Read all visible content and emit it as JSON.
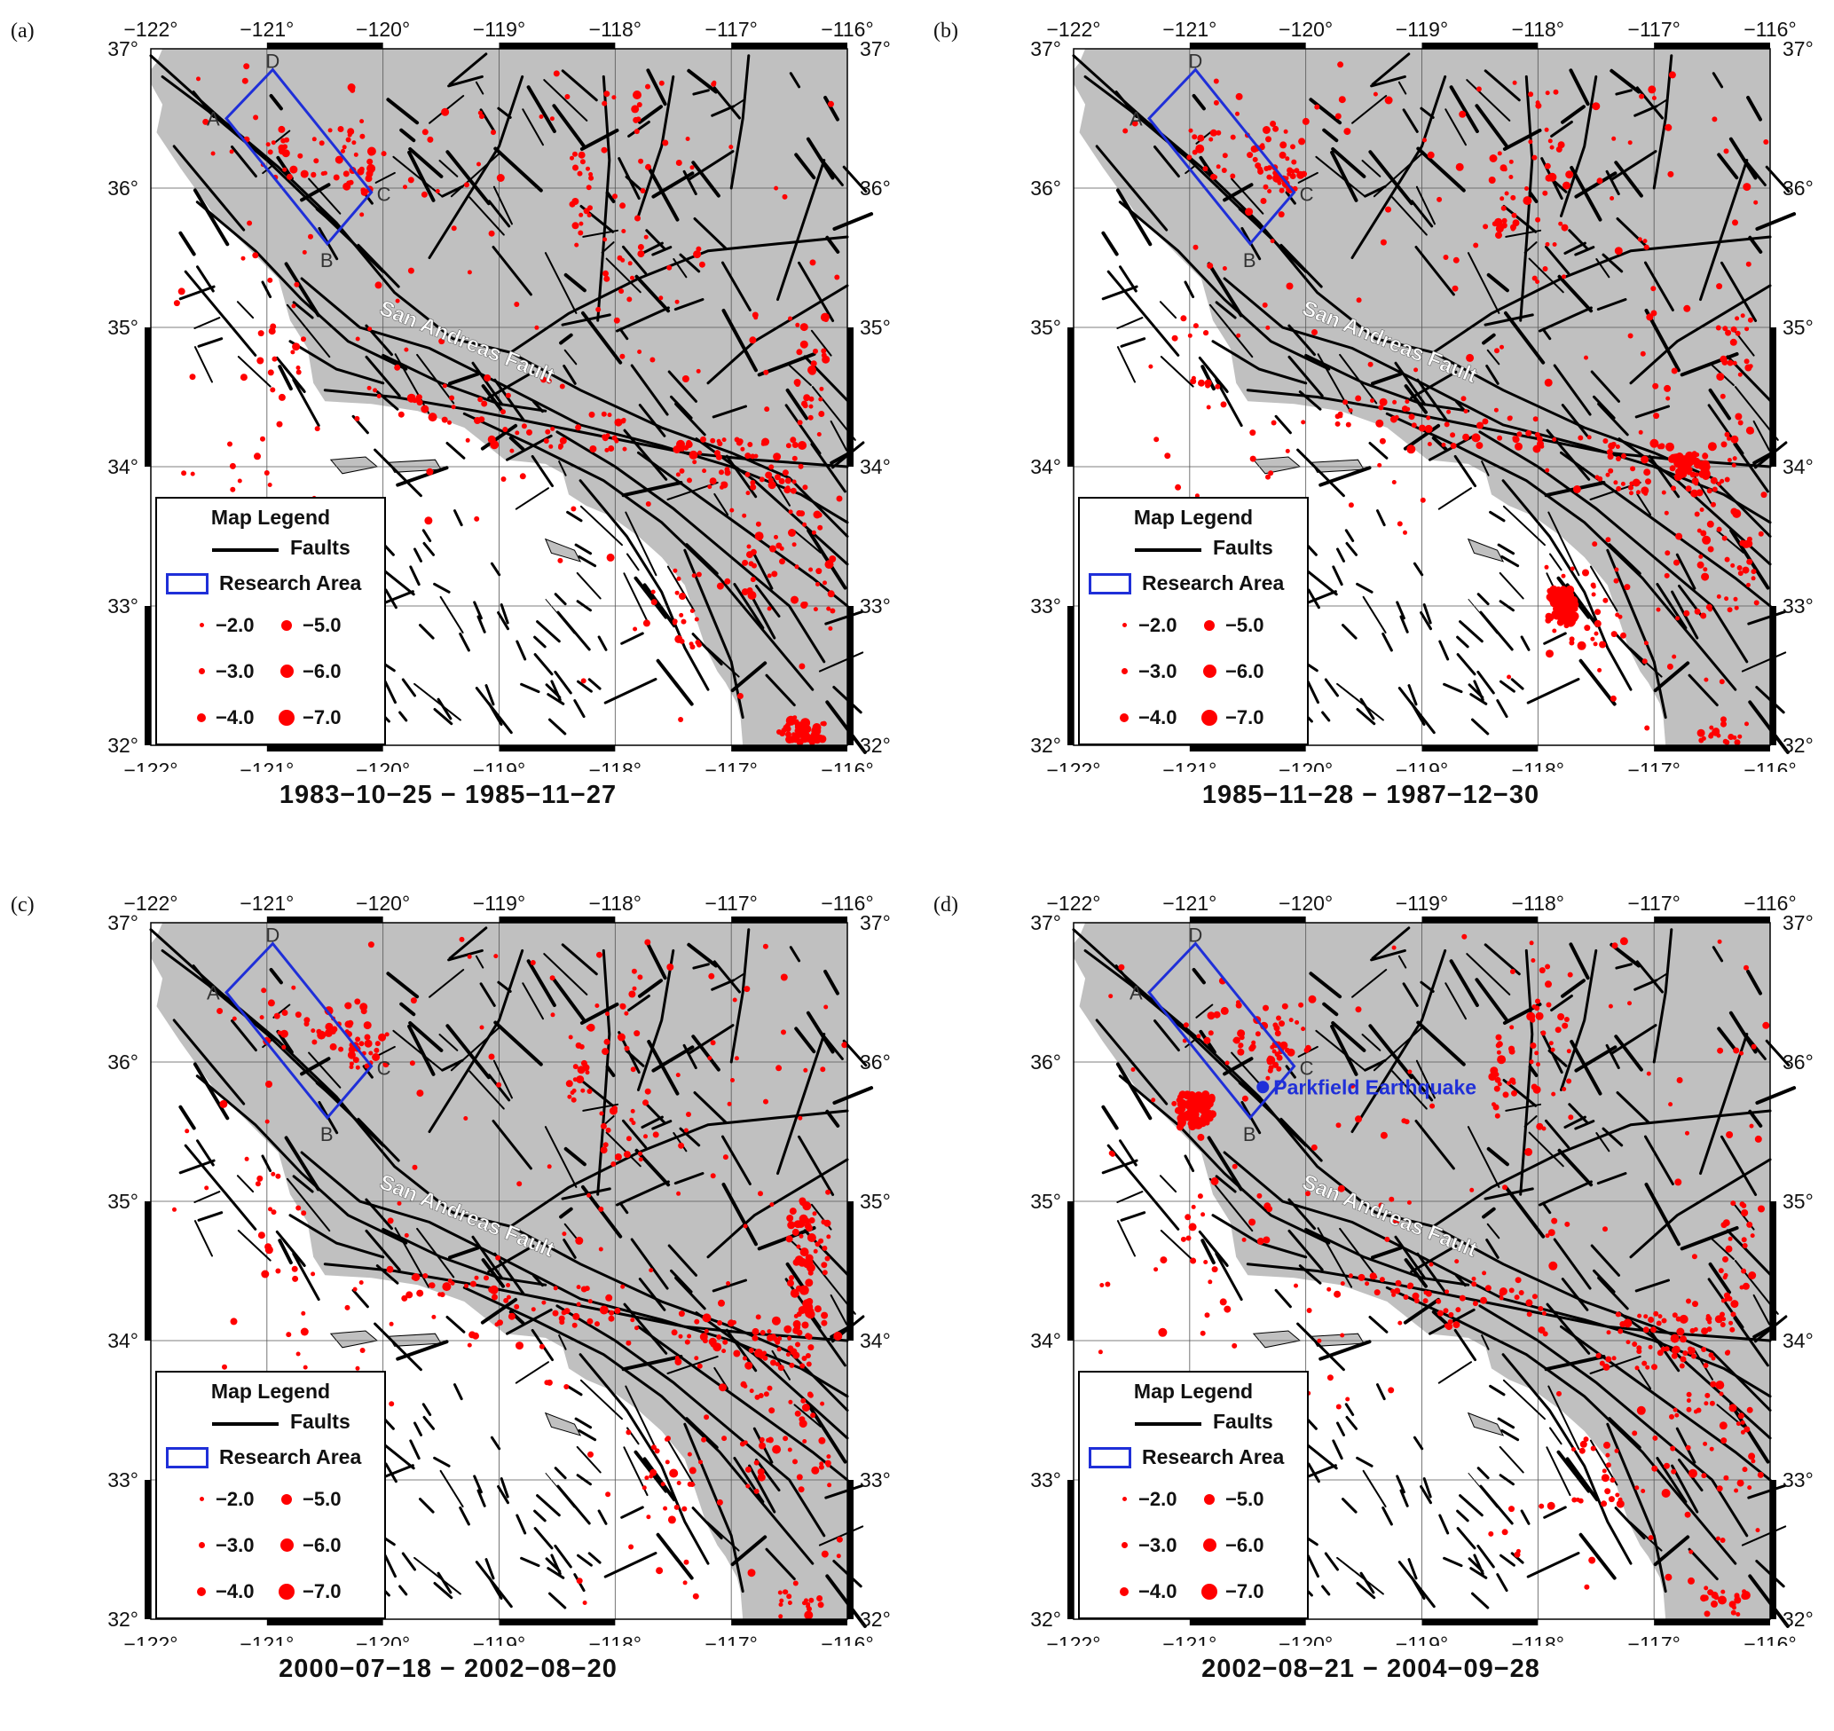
{
  "figure": {
    "axes": {
      "lon_min": -122,
      "lon_max": -116,
      "lat_min": 32,
      "lat_max": 37,
      "lon_ticks": [
        "−122°",
        "−121°",
        "−120°",
        "−119°",
        "−118°",
        "−117°",
        "−116°"
      ],
      "lat_ticks": [
        "37°",
        "36°",
        "35°",
        "34°",
        "33°",
        "32°"
      ]
    },
    "colors": {
      "land": "#c0c0c0",
      "ocean": "#ffffff",
      "faults": "#000000",
      "earthquakes": "#ff0000",
      "research_area": "#1f2fd8",
      "parkfield": "#1f2fd8"
    },
    "fault_label": "San Andreas Fault",
    "research_area_corners": {
      "A": {
        "label": "A",
        "lon": -121.35,
        "lat": 36.5
      },
      "B": {
        "label": "B",
        "lon": -120.48,
        "lat": 35.6
      },
      "C": {
        "label": "C",
        "lon": -120.1,
        "lat": 35.97
      },
      "D": {
        "label": "D",
        "lon": -120.95,
        "lat": 36.85
      }
    },
    "legend": {
      "title": "Map Legend",
      "faults_label": "Faults",
      "research_area_label": "Research Area",
      "magnitudes": [
        "−2.0",
        "−3.0",
        "−4.0",
        "−5.0",
        "−6.0",
        "−7.0"
      ]
    },
    "panels": [
      {
        "tag": "(a)",
        "date_range": "1983−10−25 − 1985−11−27"
      },
      {
        "tag": "(b)",
        "date_range": "1985−11−28 − 1987−12−30"
      },
      {
        "tag": "(c)",
        "date_range": "2000−07−18 − 2002−08−20"
      },
      {
        "tag": "(d)",
        "date_range": "2002−08−21 − 2004−09−28",
        "annotation": {
          "label": "Parkfield Earthquake",
          "lon": -120.37,
          "lat": 35.82
        }
      }
    ]
  }
}
